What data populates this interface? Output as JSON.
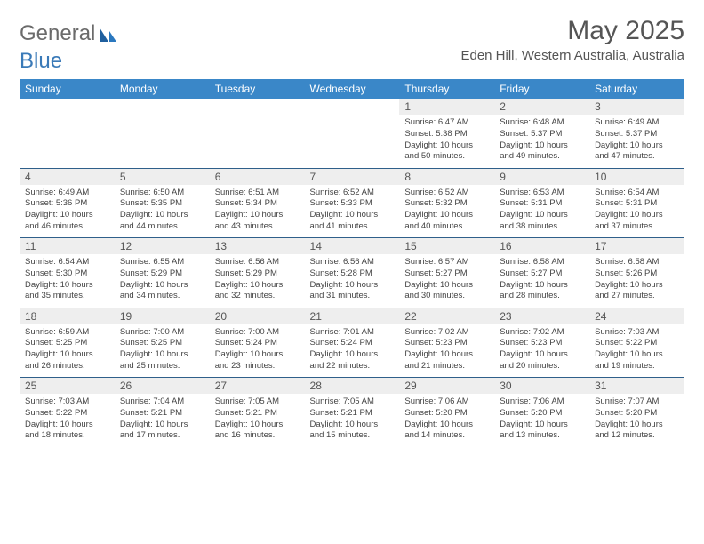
{
  "brand": {
    "part1": "General",
    "part2": "Blue"
  },
  "title": "May 2025",
  "location": "Eden Hill, Western Australia, Australia",
  "colors": {
    "header_bg": "#3a87c8",
    "header_text": "#ffffff",
    "daynum_bg": "#eeeeee",
    "text": "#555555",
    "rule": "#2f5f8a",
    "logo_gray": "#6b6b6b",
    "logo_blue": "#3a7ab8"
  },
  "day_names": [
    "Sunday",
    "Monday",
    "Tuesday",
    "Wednesday",
    "Thursday",
    "Friday",
    "Saturday"
  ],
  "weeks": [
    {
      "nums": [
        "",
        "",
        "",
        "",
        "1",
        "2",
        "3"
      ],
      "cells": [
        null,
        null,
        null,
        null,
        {
          "sunrise": "6:47 AM",
          "sunset": "5:38 PM",
          "dl1": "Daylight: 10 hours",
          "dl2": "and 50 minutes."
        },
        {
          "sunrise": "6:48 AM",
          "sunset": "5:37 PM",
          "dl1": "Daylight: 10 hours",
          "dl2": "and 49 minutes."
        },
        {
          "sunrise": "6:49 AM",
          "sunset": "5:37 PM",
          "dl1": "Daylight: 10 hours",
          "dl2": "and 47 minutes."
        }
      ]
    },
    {
      "nums": [
        "4",
        "5",
        "6",
        "7",
        "8",
        "9",
        "10"
      ],
      "cells": [
        {
          "sunrise": "6:49 AM",
          "sunset": "5:36 PM",
          "dl1": "Daylight: 10 hours",
          "dl2": "and 46 minutes."
        },
        {
          "sunrise": "6:50 AM",
          "sunset": "5:35 PM",
          "dl1": "Daylight: 10 hours",
          "dl2": "and 44 minutes."
        },
        {
          "sunrise": "6:51 AM",
          "sunset": "5:34 PM",
          "dl1": "Daylight: 10 hours",
          "dl2": "and 43 minutes."
        },
        {
          "sunrise": "6:52 AM",
          "sunset": "5:33 PM",
          "dl1": "Daylight: 10 hours",
          "dl2": "and 41 minutes."
        },
        {
          "sunrise": "6:52 AM",
          "sunset": "5:32 PM",
          "dl1": "Daylight: 10 hours",
          "dl2": "and 40 minutes."
        },
        {
          "sunrise": "6:53 AM",
          "sunset": "5:31 PM",
          "dl1": "Daylight: 10 hours",
          "dl2": "and 38 minutes."
        },
        {
          "sunrise": "6:54 AM",
          "sunset": "5:31 PM",
          "dl1": "Daylight: 10 hours",
          "dl2": "and 37 minutes."
        }
      ]
    },
    {
      "nums": [
        "11",
        "12",
        "13",
        "14",
        "15",
        "16",
        "17"
      ],
      "cells": [
        {
          "sunrise": "6:54 AM",
          "sunset": "5:30 PM",
          "dl1": "Daylight: 10 hours",
          "dl2": "and 35 minutes."
        },
        {
          "sunrise": "6:55 AM",
          "sunset": "5:29 PM",
          "dl1": "Daylight: 10 hours",
          "dl2": "and 34 minutes."
        },
        {
          "sunrise": "6:56 AM",
          "sunset": "5:29 PM",
          "dl1": "Daylight: 10 hours",
          "dl2": "and 32 minutes."
        },
        {
          "sunrise": "6:56 AM",
          "sunset": "5:28 PM",
          "dl1": "Daylight: 10 hours",
          "dl2": "and 31 minutes."
        },
        {
          "sunrise": "6:57 AM",
          "sunset": "5:27 PM",
          "dl1": "Daylight: 10 hours",
          "dl2": "and 30 minutes."
        },
        {
          "sunrise": "6:58 AM",
          "sunset": "5:27 PM",
          "dl1": "Daylight: 10 hours",
          "dl2": "and 28 minutes."
        },
        {
          "sunrise": "6:58 AM",
          "sunset": "5:26 PM",
          "dl1": "Daylight: 10 hours",
          "dl2": "and 27 minutes."
        }
      ]
    },
    {
      "nums": [
        "18",
        "19",
        "20",
        "21",
        "22",
        "23",
        "24"
      ],
      "cells": [
        {
          "sunrise": "6:59 AM",
          "sunset": "5:25 PM",
          "dl1": "Daylight: 10 hours",
          "dl2": "and 26 minutes."
        },
        {
          "sunrise": "7:00 AM",
          "sunset": "5:25 PM",
          "dl1": "Daylight: 10 hours",
          "dl2": "and 25 minutes."
        },
        {
          "sunrise": "7:00 AM",
          "sunset": "5:24 PM",
          "dl1": "Daylight: 10 hours",
          "dl2": "and 23 minutes."
        },
        {
          "sunrise": "7:01 AM",
          "sunset": "5:24 PM",
          "dl1": "Daylight: 10 hours",
          "dl2": "and 22 minutes."
        },
        {
          "sunrise": "7:02 AM",
          "sunset": "5:23 PM",
          "dl1": "Daylight: 10 hours",
          "dl2": "and 21 minutes."
        },
        {
          "sunrise": "7:02 AM",
          "sunset": "5:23 PM",
          "dl1": "Daylight: 10 hours",
          "dl2": "and 20 minutes."
        },
        {
          "sunrise": "7:03 AM",
          "sunset": "5:22 PM",
          "dl1": "Daylight: 10 hours",
          "dl2": "and 19 minutes."
        }
      ]
    },
    {
      "nums": [
        "25",
        "26",
        "27",
        "28",
        "29",
        "30",
        "31"
      ],
      "cells": [
        {
          "sunrise": "7:03 AM",
          "sunset": "5:22 PM",
          "dl1": "Daylight: 10 hours",
          "dl2": "and 18 minutes."
        },
        {
          "sunrise": "7:04 AM",
          "sunset": "5:21 PM",
          "dl1": "Daylight: 10 hours",
          "dl2": "and 17 minutes."
        },
        {
          "sunrise": "7:05 AM",
          "sunset": "5:21 PM",
          "dl1": "Daylight: 10 hours",
          "dl2": "and 16 minutes."
        },
        {
          "sunrise": "7:05 AM",
          "sunset": "5:21 PM",
          "dl1": "Daylight: 10 hours",
          "dl2": "and 15 minutes."
        },
        {
          "sunrise": "7:06 AM",
          "sunset": "5:20 PM",
          "dl1": "Daylight: 10 hours",
          "dl2": "and 14 minutes."
        },
        {
          "sunrise": "7:06 AM",
          "sunset": "5:20 PM",
          "dl1": "Daylight: 10 hours",
          "dl2": "and 13 minutes."
        },
        {
          "sunrise": "7:07 AM",
          "sunset": "5:20 PM",
          "dl1": "Daylight: 10 hours",
          "dl2": "and 12 minutes."
        }
      ]
    }
  ],
  "labels": {
    "sunrise": "Sunrise: ",
    "sunset": "Sunset: "
  }
}
